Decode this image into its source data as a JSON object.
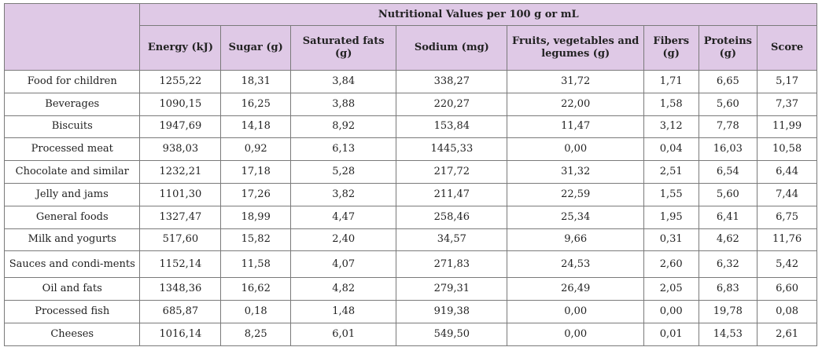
{
  "table": {
    "group_header": "Nutritional Values per 100 g or mL",
    "columns": [
      "Energy (kJ)",
      "Sugar (g)",
      "Saturated fats (g)",
      "Sodium (mg)",
      "Fruits, vegetables and legumes (g)",
      "Fibers (g)",
      "Proteins (g)",
      "Score"
    ],
    "rows": [
      {
        "label": "Food for children",
        "values": [
          "1255,22",
          "18,31",
          "3,84",
          "338,27",
          "31,72",
          "1,71",
          "6,65",
          "5,17"
        ]
      },
      {
        "label": "Beverages",
        "values": [
          "1090,15",
          "16,25",
          "3,88",
          "220,27",
          "22,00",
          "1,58",
          "5,60",
          "7,37"
        ]
      },
      {
        "label": "Biscuits",
        "values": [
          "1947,69",
          "14,18",
          "8,92",
          "153,84",
          "11,47",
          "3,12",
          "7,78",
          "11,99"
        ]
      },
      {
        "label": "Processed meat",
        "values": [
          "938,03",
          "0,92",
          "6,13",
          "1445,33",
          "0,00",
          "0,04",
          "16,03",
          "10,58"
        ]
      },
      {
        "label": "Chocolate and similar",
        "values": [
          "1232,21",
          "17,18",
          "5,28",
          "217,72",
          "31,32",
          "2,51",
          "6,54",
          "6,44"
        ]
      },
      {
        "label": "Jelly and jams",
        "values": [
          "1101,30",
          "17,26",
          "3,82",
          "211,47",
          "22,59",
          "1,55",
          "5,60",
          "7,44"
        ]
      },
      {
        "label": "General foods",
        "values": [
          "1327,47",
          "18,99",
          "4,47",
          "258,46",
          "25,34",
          "1,95",
          "6,41",
          "6,75"
        ]
      },
      {
        "label": "Milk and yogurts",
        "values": [
          "517,60",
          "15,82",
          "2,40",
          "34,57",
          "9,66",
          "0,31",
          "4,62",
          "11,76"
        ]
      },
      {
        "label": "Sauces and condi-ments",
        "values": [
          "1152,14",
          "11,58",
          "4,07",
          "271,83",
          "24,53",
          "2,60",
          "6,32",
          "5,42"
        ]
      },
      {
        "label": "Oil and fats",
        "values": [
          "1348,36",
          "16,62",
          "4,82",
          "279,31",
          "26,49",
          "2,05",
          "6,83",
          "6,60"
        ]
      },
      {
        "label": "Processed fish",
        "values": [
          "685,87",
          "0,18",
          "1,48",
          "919,38",
          "0,00",
          "0,00",
          "19,78",
          "0,08"
        ]
      },
      {
        "label": "Cheeses",
        "values": [
          "1016,14",
          "8,25",
          "6,01",
          "549,50",
          "0,00",
          "0,01",
          "14,53",
          "2,61"
        ]
      }
    ]
  },
  "colors": {
    "header_bg": "#dfc9e6",
    "border": "#7a7a7a"
  }
}
